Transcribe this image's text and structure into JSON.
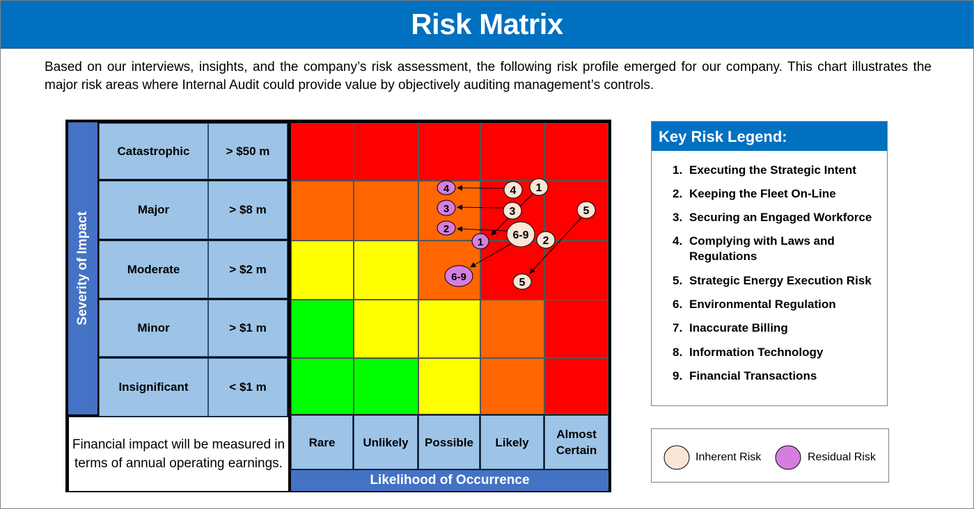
{
  "title": "Risk Matrix",
  "intro": "Based on our interviews, insights, and the company’s risk assessment, the following risk profile emerged for our company. This chart illustrates the major risk areas where Internal Audit could provide value by objectively auditing management’s controls.",
  "severity_axis_label": "Severity of Impact",
  "likelihood_axis_label": "Likelihood of Occurrence",
  "severity_levels": [
    {
      "label": "Catastrophic",
      "impact": "> $50 m"
    },
    {
      "label": "Major",
      "impact": "> $8 m"
    },
    {
      "label": "Moderate",
      "impact": "> $2 m"
    },
    {
      "label": "Minor",
      "impact": "> $1 m"
    },
    {
      "label": "Insignificant",
      "impact": "< $1 m"
    }
  ],
  "likelihood_levels": [
    "Rare",
    "Unlikely",
    "Possible",
    "Likely",
    "Almost Certain"
  ],
  "financial_note": "Financial impact will be measured in terms of annual operating earnings.",
  "heat_colors": {
    "red": "#ff0000",
    "orange": "#ff6600",
    "yellow": "#ffff00",
    "green": "#00ff00"
  },
  "heat_grid": [
    [
      "red",
      "red",
      "red",
      "red",
      "red"
    ],
    [
      "orange",
      "orange",
      "orange",
      "red",
      "red"
    ],
    [
      "yellow",
      "yellow",
      "orange",
      "red",
      "red"
    ],
    [
      "green",
      "yellow",
      "yellow",
      "orange",
      "red"
    ],
    [
      "green",
      "green",
      "yellow",
      "orange",
      "red"
    ]
  ],
  "legend": {
    "title": "Key Risk Legend:",
    "items": [
      {
        "num": "1.",
        "text": "Executing the Strategic Intent"
      },
      {
        "num": "2.",
        "text": "Keeping the Fleet On-Line"
      },
      {
        "num": "3.",
        "text": "Securing an Engaged Workforce"
      },
      {
        "num": "4.",
        "text": "Complying with Laws and Regulations"
      },
      {
        "num": "5.",
        "text": "Strategic Energy Execution Risk"
      },
      {
        "num": "6.",
        "text": "Environmental Regulation"
      },
      {
        "num": "7.",
        "text": "Inaccurate Billing"
      },
      {
        "num": "8.",
        "text": "Information Technology"
      },
      {
        "num": "9.",
        "text": "Financial Transactions"
      }
    ]
  },
  "bubble_key": {
    "inherent_label": "Inherent Risk",
    "residual_label": "Residual Risk",
    "inherent_color": "#fbe5d6",
    "residual_color": "#d67ee0"
  },
  "inherent_risks": [
    {
      "label": "1"
    },
    {
      "label": "4"
    },
    {
      "label": "3"
    },
    {
      "label": "5"
    },
    {
      "label": "6-9"
    },
    {
      "label": "2"
    },
    {
      "label": "5"
    }
  ],
  "residual_risks": [
    {
      "label": "4"
    },
    {
      "label": "3"
    },
    {
      "label": "2"
    },
    {
      "label": "1"
    },
    {
      "label": "6-9"
    }
  ]
}
